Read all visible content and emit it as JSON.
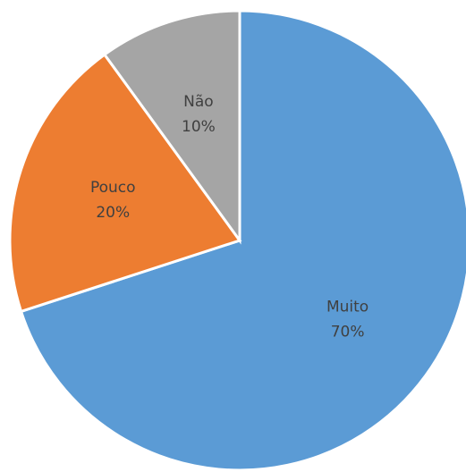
{
  "chart_data": {
    "type": "pie",
    "categories": [
      "Muito",
      "Pouco",
      "Não"
    ],
    "values": [
      70,
      20,
      10
    ],
    "value_labels": [
      "70%",
      "20%",
      "10%"
    ],
    "colors": [
      "#5b9bd5",
      "#ed7d31",
      "#a5a5a5"
    ]
  }
}
